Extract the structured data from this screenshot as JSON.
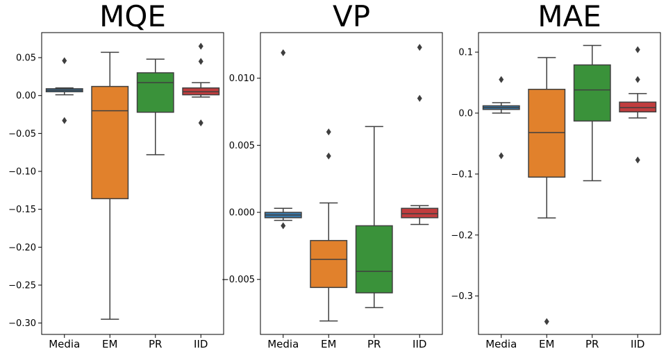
{
  "chart_data": [
    {
      "type": "boxplot",
      "title": "MQE",
      "categories": [
        "Media",
        "EM",
        "PR",
        "IID"
      ],
      "ylim": [
        -0.315,
        0.083
      ],
      "yticks": [
        0.05,
        0.0,
        -0.05,
        -0.1,
        -0.15,
        -0.2,
        -0.25,
        -0.3
      ],
      "ytick_labels": [
        "0.05",
        "0.00",
        "−0.05",
        "−0.10",
        "−0.15",
        "−0.20",
        "−0.25",
        "−0.30"
      ],
      "grid": false,
      "boxes": [
        {
          "name": "Media",
          "color": "#3a78a8",
          "whisker_low": 0.001,
          "q1": 0.005,
          "median": 0.007,
          "q3": 0.009,
          "whisker_high": 0.01,
          "outliers": [
            0.046,
            -0.033
          ]
        },
        {
          "name": "EM",
          "color": "#e1812c",
          "whisker_low": -0.295,
          "q1": -0.136,
          "median": -0.02,
          "q3": 0.012,
          "whisker_high": 0.057,
          "outliers": []
        },
        {
          "name": "PR",
          "color": "#3a923a",
          "whisker_low": -0.078,
          "q1": -0.022,
          "median": 0.017,
          "q3": 0.03,
          "whisker_high": 0.048,
          "outliers": []
        },
        {
          "name": "IID",
          "color": "#c03d3e",
          "whisker_low": -0.002,
          "q1": 0.001,
          "median": 0.005,
          "q3": 0.01,
          "whisker_high": 0.017,
          "outliers": [
            0.065,
            0.045,
            -0.036
          ]
        }
      ]
    },
    {
      "type": "boxplot",
      "title": "VP",
      "categories": [
        "Media",
        "EM",
        "PR",
        "IID"
      ],
      "ylim": [
        -0.0091,
        0.0134
      ],
      "yticks": [
        0.01,
        0.005,
        0.0,
        -0.005
      ],
      "ytick_labels": [
        "0.010",
        "0.005",
        "0.000",
        "−0.005"
      ],
      "grid": false,
      "boxes": [
        {
          "name": "Media",
          "color": "#3a78a8",
          "whisker_low": -0.0006,
          "q1": -0.0004,
          "median": -0.0002,
          "q3": 0.0,
          "whisker_high": 0.0003,
          "outliers": [
            0.0119,
            -0.001
          ]
        },
        {
          "name": "EM",
          "color": "#e1812c",
          "whisker_low": -0.0081,
          "q1": -0.0056,
          "median": -0.0035,
          "q3": -0.0021,
          "whisker_high": 0.0007,
          "outliers": [
            0.006,
            0.0042
          ]
        },
        {
          "name": "PR",
          "color": "#3a923a",
          "whisker_low": -0.0071,
          "q1": -0.006,
          "median": -0.0044,
          "q3": -0.001,
          "whisker_high": 0.0064,
          "outliers": []
        },
        {
          "name": "IID",
          "color": "#c03d3e",
          "whisker_low": -0.0009,
          "q1": -0.0004,
          "median": -0.0001,
          "q3": 0.0003,
          "whisker_high": 0.0005,
          "outliers": [
            0.0123,
            0.0085
          ]
        }
      ]
    },
    {
      "type": "boxplot",
      "title": "MAE",
      "categories": [
        "Media",
        "EM",
        "PR",
        "IID"
      ],
      "ylim": [
        -0.363,
        0.132
      ],
      "yticks": [
        0.1,
        0.0,
        -0.1,
        -0.2,
        -0.3
      ],
      "ytick_labels": [
        "0.1",
        "0.0",
        "−0.1",
        "−0.2",
        "−0.3"
      ],
      "grid": false,
      "boxes": [
        {
          "name": "Media",
          "color": "#3a78a8",
          "whisker_low": 0.0,
          "q1": 0.006,
          "median": 0.009,
          "q3": 0.012,
          "whisker_high": 0.017,
          "outliers": [
            0.055,
            -0.07
          ]
        },
        {
          "name": "EM",
          "color": "#e1812c",
          "whisker_low": -0.172,
          "q1": -0.105,
          "median": -0.032,
          "q3": 0.039,
          "whisker_high": 0.091,
          "outliers": [
            -0.342
          ]
        },
        {
          "name": "PR",
          "color": "#3a923a",
          "whisker_low": -0.111,
          "q1": -0.013,
          "median": 0.038,
          "q3": 0.079,
          "whisker_high": 0.111,
          "outliers": []
        },
        {
          "name": "IID",
          "color": "#c03d3e",
          "whisker_low": -0.008,
          "q1": 0.002,
          "median": 0.009,
          "q3": 0.018,
          "whisker_high": 0.032,
          "outliers": [
            0.104,
            0.055,
            -0.077
          ]
        }
      ]
    }
  ]
}
